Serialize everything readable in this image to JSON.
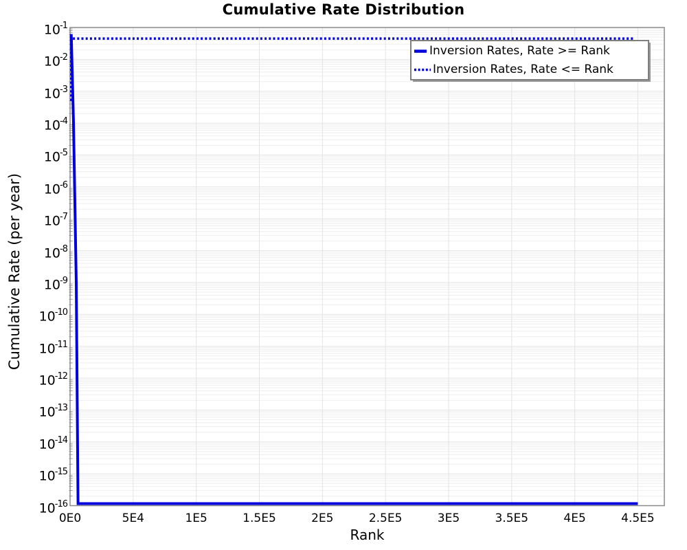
{
  "chart_data": {
    "type": "line",
    "title": "Cumulative Rate Distribution",
    "xlabel": "Rank",
    "ylabel": "Cumulative Rate (per year)",
    "x_axis": {
      "min": 0,
      "max": 471000,
      "ticks": [
        {
          "value": 0,
          "label": "0E0"
        },
        {
          "value": 50000,
          "label": "5E4"
        },
        {
          "value": 100000,
          "label": "1E5"
        },
        {
          "value": 150000,
          "label": "1.5E5"
        },
        {
          "value": 200000,
          "label": "2E5"
        },
        {
          "value": 250000,
          "label": "2.5E5"
        },
        {
          "value": 300000,
          "label": "3E5"
        },
        {
          "value": 350000,
          "label": "3.5E5"
        },
        {
          "value": 400000,
          "label": "4E5"
        },
        {
          "value": 450000,
          "label": "4.5E5"
        }
      ]
    },
    "y_axis": {
      "scale": "log",
      "top_exp": -1,
      "bottom_exp": -16,
      "tick_base": "10",
      "minor_multiples": [
        2,
        3,
        4,
        5,
        6,
        7,
        8,
        9
      ]
    },
    "grid": {
      "vertical": true,
      "horizontal_major": true,
      "horizontal_minor": true
    },
    "colors": {
      "series_blue": "#0000dd",
      "axis_border": "#8a8a8a",
      "grid_major": "#e3e3e3",
      "grid_minor": "#eeeeee",
      "minor_tick": "#8a8a8a"
    },
    "legend": {
      "position": "top-right",
      "entries": [
        {
          "label": "Inversion Rates, Rate >= Rank",
          "style": "solid"
        },
        {
          "label": "Inversion Rates, Rate <= Rank",
          "style": "dotted"
        }
      ]
    },
    "series": [
      {
        "name": "Inversion Rates, Rate >= Rank",
        "style": "solid",
        "color": "#0000dd",
        "width": 4,
        "points": [
          [
            900,
            0.062
          ],
          [
            2700,
            0.0001
          ],
          [
            4900,
            1e-09
          ],
          [
            6300,
            1e-16
          ],
          [
            450000,
            1e-16
          ]
        ]
      },
      {
        "name": "Inversion Rates, Rate <= Rank",
        "style": "dotted",
        "color": "#0000dd",
        "width": 3.5,
        "points": [
          [
            900,
            0.0005
          ],
          [
            900,
            0.045
          ],
          [
            447000,
            0.045
          ]
        ]
      }
    ]
  }
}
